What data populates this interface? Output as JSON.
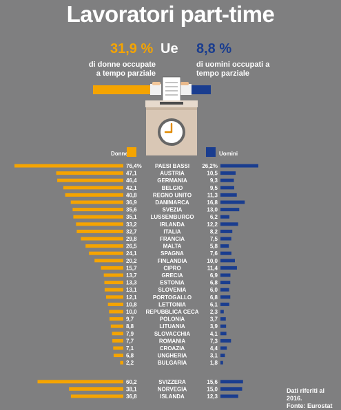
{
  "title": "Lavoratori part-time",
  "header": {
    "women_pct": "31,9 %",
    "ue": "Ue",
    "men_pct": "8,8 %",
    "women_desc": "di donne occupate a tempo parziale",
    "men_desc": "di uomini occupati a tempo parziale"
  },
  "legend": {
    "women": "Donne",
    "men": "Uomini"
  },
  "colors": {
    "women": "#f5a400",
    "men": "#1a3d8f",
    "background": "#7f7f80"
  },
  "footnote": {
    "line1": "Dati riferiti al 2016.",
    "line2": "Fonte: Eurostat"
  },
  "icons": [
    "ballot-box-icon",
    "clock-icon",
    "hands-icon"
  ],
  "chart_data": {
    "type": "bar",
    "orientation": "horizontal-butterfly",
    "series": [
      {
        "name": "Donne",
        "values": [
          76.4,
          47.1,
          46.4,
          42.1,
          40.8,
          36.9,
          35.6,
          35.1,
          33.2,
          32.7,
          29.8,
          26.5,
          24.1,
          20.2,
          15.7,
          13.7,
          13.3,
          13.1,
          12.1,
          10.8,
          10.0,
          9.7,
          8.8,
          7.9,
          7.7,
          7.1,
          6.8,
          2.2,
          60.2,
          38.1,
          36.8
        ]
      },
      {
        "name": "Uomini",
        "values": [
          26.2,
          10.5,
          9.3,
          9.5,
          11.3,
          16.8,
          13.0,
          6.2,
          12.2,
          8.2,
          7.5,
          5.8,
          7.6,
          10.0,
          11.4,
          6.9,
          6.8,
          6.0,
          6.8,
          6.1,
          2.3,
          3.7,
          3.9,
          4.1,
          7.3,
          4.4,
          3.1,
          1.8,
          15.6,
          15.0,
          12.3
        ]
      }
    ],
    "categories": [
      "PAESI BASSI",
      "AUSTRIA",
      "GERMANIA",
      "BELGIO",
      "REGNO UNITO",
      "DANIMARCA",
      "SVEZIA",
      "LUSSEMBURGO",
      "IRLANDA",
      "ITALIA",
      "FRANCIA",
      "MALTA",
      "SPAGNA",
      "FINLANDIA",
      "CIPRO",
      "GRECIA",
      "ESTONIA",
      "SLOVENIA",
      "PORTOGALLO",
      "LETTONIA",
      "REPUBBLICA CECA",
      "POLONIA",
      "LITUANIA",
      "SLOVACCHIA",
      "ROMANIA",
      "CROAZIA",
      "UNGHERIA",
      "BULGARIA",
      "SVIZZERA",
      "NORVEGIA",
      "ISLANDA"
    ],
    "women_labels": [
      "76,4",
      "47,1",
      "46,4",
      "42,1",
      "40,8",
      "36,9",
      "35,6",
      "35,1",
      "33,2",
      "32,7",
      "29,8",
      "26,5",
      "24,1",
      "20,2",
      "15,7",
      "13,7",
      "13,3",
      "13,1",
      "12,1",
      "10,8",
      "10,0",
      "9,7",
      "8,8",
      "7,9",
      "7,7",
      "7,1",
      "6,8",
      "2,2",
      "60,2",
      "38,1",
      "36,8"
    ],
    "men_labels": [
      "26,2",
      "10,5",
      "9,3",
      "9,5",
      "11,3",
      "16,8",
      "13,0",
      "6,2",
      "12,2",
      "8,2",
      "7,5",
      "5,8",
      "7,6",
      "10,0",
      "11,4",
      "6,9",
      "6,8",
      "6,0",
      "6,8",
      "6,1",
      "2,3",
      "3,7",
      "3,9",
      "4,1",
      "7,3",
      "4,4",
      "3,1",
      "1,8",
      "15,6",
      "15,0",
      "12,3"
    ],
    "women_pct_label_suffix_first": "%",
    "men_pct_label_suffix_first": "%",
    "grid": false,
    "legend_position": "top"
  }
}
